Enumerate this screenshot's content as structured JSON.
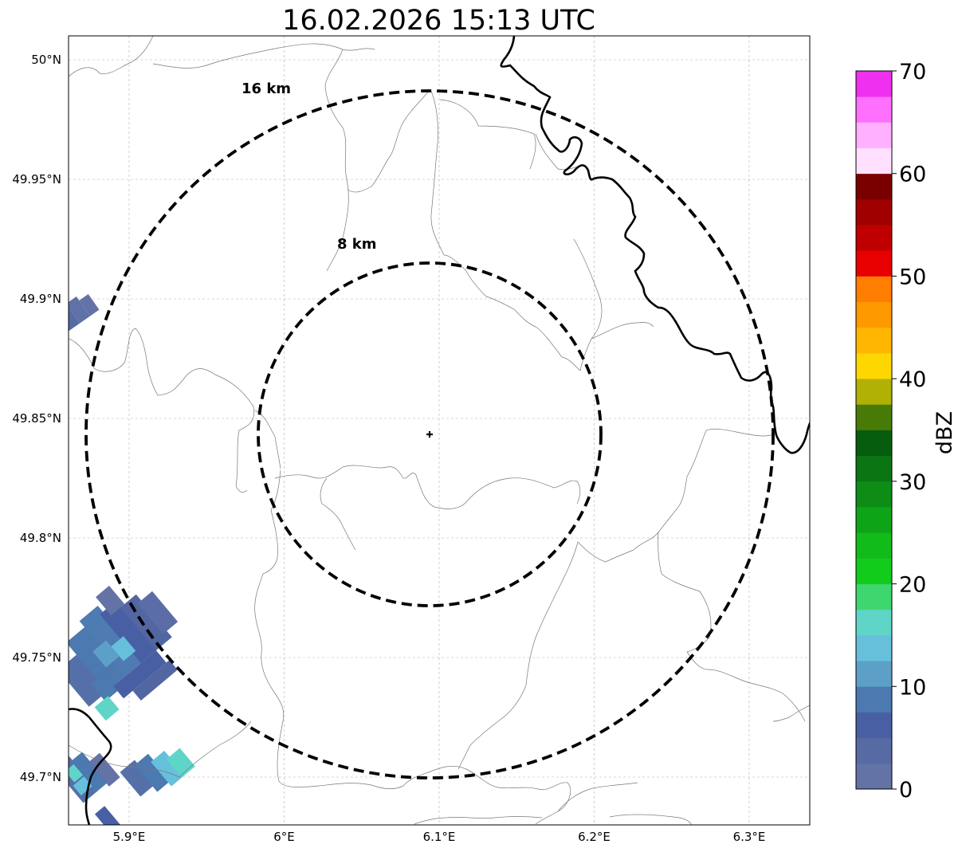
{
  "title": "16.02.2026 15:13 UTC",
  "map": {
    "center": {
      "lon": 6.0945,
      "lat": 49.8435
    },
    "x_ticks": [
      {
        "lon": 5.9,
        "label": "5.9°E"
      },
      {
        "lon": 6.0,
        "label": "6°E"
      },
      {
        "lon": 6.1,
        "label": "6.1°E"
      },
      {
        "lon": 6.2,
        "label": "6.2°E"
      },
      {
        "lon": 6.3,
        "label": "6.3°E"
      }
    ],
    "y_ticks": [
      {
        "lat": 50.0,
        "label": "50°N"
      },
      {
        "lat": 49.95,
        "label": "49.95°N"
      },
      {
        "lat": 49.9,
        "label": "49.9°N"
      },
      {
        "lat": 49.85,
        "label": "49.85°N"
      },
      {
        "lat": 49.8,
        "label": "49.8°N"
      },
      {
        "lat": 49.75,
        "label": "49.75°N"
      },
      {
        "lat": 49.7,
        "label": "49.7°N"
      }
    ],
    "range_rings": [
      {
        "radius_km": 8,
        "label": "8 km"
      },
      {
        "radius_km": 16,
        "label": "16 km"
      }
    ],
    "gridlines": true
  },
  "colorbar": {
    "label": "dBZ",
    "ticks": [
      "0",
      "10",
      "20",
      "30",
      "40",
      "50",
      "60",
      "70"
    ],
    "colors": [
      "#6373a6",
      "#576aa3",
      "#4860a3",
      "#4b79b0",
      "#5ca0c8",
      "#66c0dc",
      "#5fd5c8",
      "#3ed66e",
      "#12cc1c",
      "#10bb1a",
      "#0ea418",
      "#0d8c16",
      "#0b7514",
      "#065d0e",
      "#487a08",
      "#b0b005",
      "#ffd700",
      "#ffb600",
      "#ff9900",
      "#ff7d00",
      "#e80000",
      "#c00000",
      "#a00000",
      "#7a0000",
      "#ffe0ff",
      "#ffb0ff",
      "#ff70ff",
      "#f030f0"
    ]
  }
}
